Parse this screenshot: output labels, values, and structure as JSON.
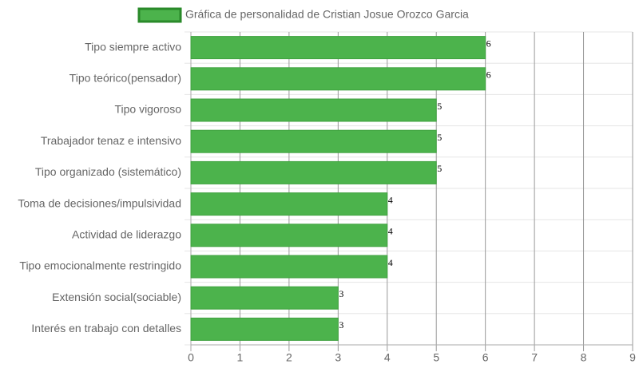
{
  "chart_data": {
    "type": "bar",
    "orientation": "horizontal",
    "categories": [
      "Tipo siempre activo",
      "Tipo teórico(pensador)",
      "Tipo vigoroso",
      "Trabajador tenaz e intensivo",
      "Tipo organizado (sistemático)",
      "Toma de decisiones/impulsividad",
      "Actividad de liderazgo",
      "Tipo emocionalmente restringido",
      "Extensión social(sociable)",
      "Interés en trabajo con detalles"
    ],
    "series": [
      {
        "name": "Gráfica de personalidad de Cristian Josue Orozco Garcia",
        "color": "#4cb34c",
        "values": [
          6,
          6,
          5,
          5,
          5,
          4,
          4,
          4,
          3,
          3
        ]
      }
    ],
    "xlim": [
      0,
      9
    ],
    "xticks": [
      0,
      1,
      2,
      3,
      4,
      5,
      6,
      7,
      8,
      9
    ],
    "grid": true,
    "legend": "top"
  }
}
